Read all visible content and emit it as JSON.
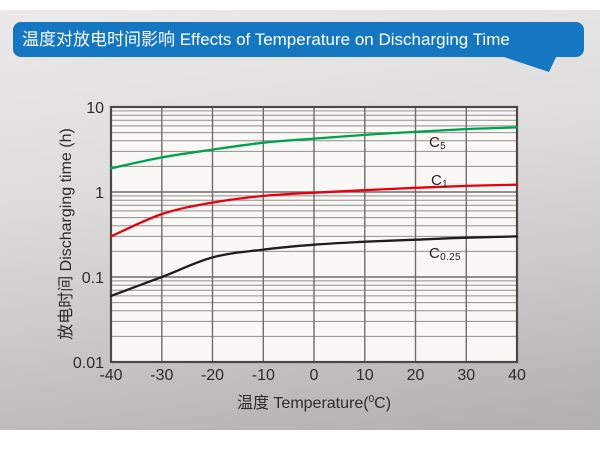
{
  "header": {
    "title": "温度对放电时间影响 Effects of Temperature on Discharging Time"
  },
  "colors": {
    "banner_blue": "#1577c2",
    "panel_gray": "#c9c7c7",
    "plot_background": "#faf8f5",
    "grid_minor": "#908e8e",
    "grid_major": "#6e6c6c",
    "plot_border": "#4a4848",
    "text": "#2d2b2b"
  },
  "chart_data": {
    "type": "line",
    "title": "温度对放电时间影响 Effects of Temperature on Discharging Time",
    "xlabel": "温度 Temperature(°C)",
    "xlabel_prefix": "温度  Temperature(",
    "xlabel_degree": "0",
    "xlabel_suffix": "C)",
    "ylabel": "放电时间 Discharging time (h)",
    "x_axis": {
      "min": -40,
      "max": 40,
      "ticks": [
        -40,
        -30,
        -20,
        -10,
        0,
        10,
        20,
        30,
        40
      ]
    },
    "y_axis": {
      "scale": "log",
      "min": 0.01,
      "max": 10,
      "tick_values": [
        10,
        1,
        0.1,
        0.01
      ],
      "tick_labels": [
        "10",
        "1",
        "0.1",
        "0.01"
      ]
    },
    "grid": true,
    "legend_position": "inline-labels",
    "x": [
      -40,
      -30,
      -20,
      -10,
      0,
      10,
      20,
      30,
      40
    ],
    "series": [
      {
        "name": "C5",
        "label_main": "C",
        "label_sub": "5",
        "color": "#00a14e",
        "values": [
          1.9,
          2.55,
          3.15,
          3.8,
          4.25,
          4.7,
          5.1,
          5.5,
          5.75
        ]
      },
      {
        "name": "C1",
        "label_main": "C",
        "label_sub": "1",
        "color": "#e60012",
        "values": [
          0.3,
          0.55,
          0.75,
          0.9,
          0.98,
          1.05,
          1.12,
          1.18,
          1.22
        ]
      },
      {
        "name": "C0.25",
        "label_main": "C",
        "label_sub": "0.25",
        "color": "#1f1d1d",
        "values": [
          0.06,
          0.1,
          0.17,
          0.21,
          0.24,
          0.26,
          0.275,
          0.29,
          0.3
        ]
      }
    ]
  }
}
